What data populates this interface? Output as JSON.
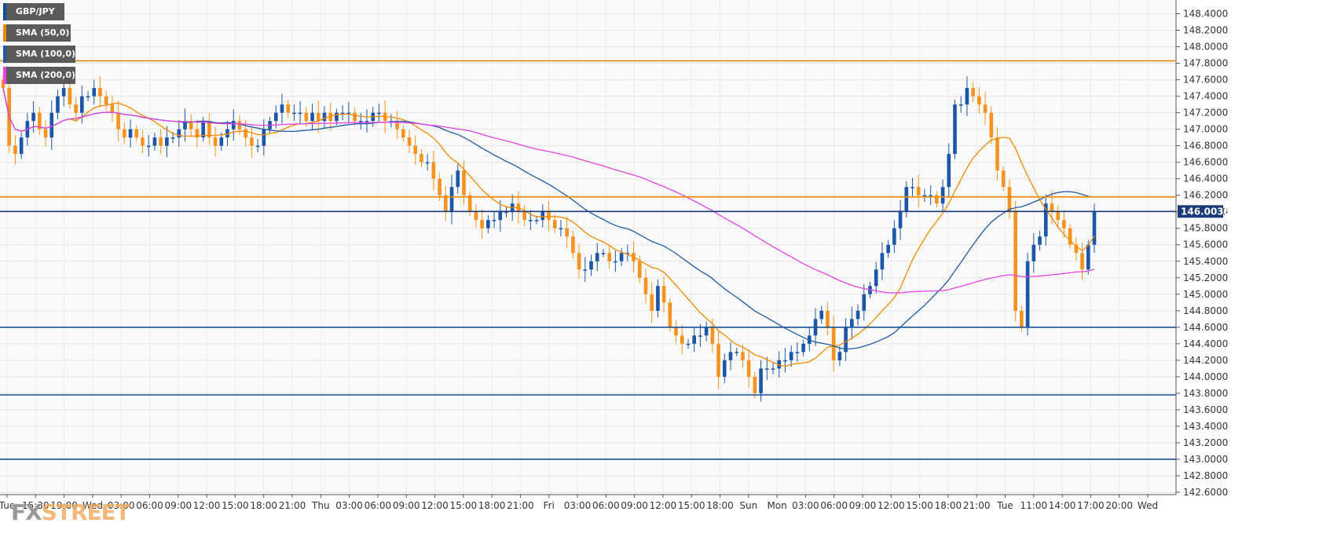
{
  "legend": [
    {
      "label": "GBP/JPY",
      "color": "#0d4d9c"
    },
    {
      "label": "SMA (50,0)",
      "color": "#f28a00"
    },
    {
      "label": "SMA (100,0)",
      "color": "#1e5aa8"
    },
    {
      "label": "SMA (200,0)",
      "color": "#e642e6"
    }
  ],
  "logo": {
    "fx": "FX",
    "street": "STREET"
  },
  "current_price_label": "146.0035",
  "chart_data": {
    "type": "candlestick",
    "title": "",
    "xlabel": "",
    "ylabel": "",
    "ylim": [
      142.6,
      148.5
    ],
    "grid": true,
    "y_ticks": [
      "142.6000",
      "142.8000",
      "143.0000",
      "143.2000",
      "143.4000",
      "143.6000",
      "143.8000",
      "144.0000",
      "144.2000",
      "144.4000",
      "144.6000",
      "144.8000",
      "145.0000",
      "145.2000",
      "145.4000",
      "145.6000",
      "145.8000",
      "146.0000",
      "146.2000",
      "146.4000",
      "146.6000",
      "146.8000",
      "147.0000",
      "147.2000",
      "147.4000",
      "147.6000",
      "147.8000",
      "148.0000",
      "148.2000",
      "148.4000"
    ],
    "x_ticks": [
      "Tue",
      "15:30",
      "19:00",
      "Wed",
      "03:00",
      "06:00",
      "09:00",
      "12:00",
      "15:00",
      "18:00",
      "21:00",
      "Thu",
      "03:00",
      "06:00",
      "09:00",
      "12:00",
      "15:00",
      "18:00",
      "21:00",
      "Fri",
      "03:00",
      "06:00",
      "09:00",
      "12:00",
      "15:00",
      "18:00",
      "Sun",
      "Mon",
      "03:00",
      "06:00",
      "09:00",
      "12:00",
      "15:00",
      "18:00",
      "21:00",
      "Tue",
      "11:00",
      "14:00",
      "17:00",
      "20:00",
      "Wed"
    ],
    "horizontal_levels": [
      {
        "value": 147.83,
        "color": "#f28a00"
      },
      {
        "value": 146.18,
        "color": "#f28a00"
      },
      {
        "value": 146.0035,
        "color": "#1a3a7a"
      },
      {
        "value": 144.6,
        "color": "#1a4f9a"
      },
      {
        "value": 143.78,
        "color": "#1a4f9a"
      },
      {
        "value": 143.0,
        "color": "#1a4f9a"
      }
    ],
    "close_series": [
      147.5,
      146.8,
      146.7,
      146.9,
      147.1,
      147.2,
      147.0,
      146.9,
      147.2,
      147.4,
      147.5,
      147.3,
      147.2,
      147.4,
      147.4,
      147.5,
      147.4,
      147.3,
      147.2,
      147.0,
      146.9,
      147.0,
      146.9,
      146.8,
      146.8,
      146.9,
      146.8,
      146.9,
      146.9,
      147.0,
      147.1,
      147.0,
      146.9,
      147.1,
      146.9,
      146.8,
      146.9,
      147.0,
      147.1,
      147.0,
      146.9,
      146.8,
      146.8,
      147.0,
      147.1,
      147.2,
      147.3,
      147.2,
      147.2,
      147.2,
      147.1,
      147.2,
      147.1,
      147.2,
      147.1,
      147.2,
      147.2,
      147.2,
      147.1,
      147.1,
      147.1,
      147.2,
      147.2,
      147.1,
      147.1,
      147.0,
      146.9,
      146.8,
      146.7,
      146.6,
      146.6,
      146.4,
      146.2,
      146.0,
      146.3,
      146.5,
      146.2,
      146.0,
      145.9,
      145.8,
      145.9,
      145.9,
      146.0,
      146.0,
      146.1,
      146.0,
      145.9,
      145.9,
      145.9,
      146.0,
      145.9,
      145.8,
      145.8,
      145.7,
      145.5,
      145.3,
      145.3,
      145.4,
      145.5,
      145.5,
      145.4,
      145.4,
      145.5,
      145.5,
      145.4,
      145.2,
      145.0,
      144.8,
      145.1,
      144.9,
      144.6,
      144.5,
      144.4,
      144.4,
      144.5,
      144.5,
      144.6,
      144.4,
      144.0,
      144.2,
      144.3,
      144.3,
      144.2,
      144.0,
      143.8,
      144.1,
      144.1,
      144.1,
      144.2,
      144.2,
      144.3,
      144.3,
      144.4,
      144.5,
      144.7,
      144.8,
      144.6,
      144.2,
      144.3,
      144.6,
      144.7,
      144.8,
      145.0,
      145.1,
      145.3,
      145.5,
      145.6,
      145.8,
      146.0,
      146.3,
      146.3,
      146.2,
      146.2,
      146.2,
      146.1,
      146.3,
      146.7,
      147.3,
      147.3,
      147.5,
      147.4,
      147.3,
      147.2,
      146.9,
      146.5,
      146.3,
      146.0,
      144.8,
      144.6,
      145.4,
      145.6,
      145.7,
      146.1,
      146.0,
      145.9,
      145.8,
      145.6,
      145.5,
      145.3,
      145.6,
      146.0
    ]
  }
}
